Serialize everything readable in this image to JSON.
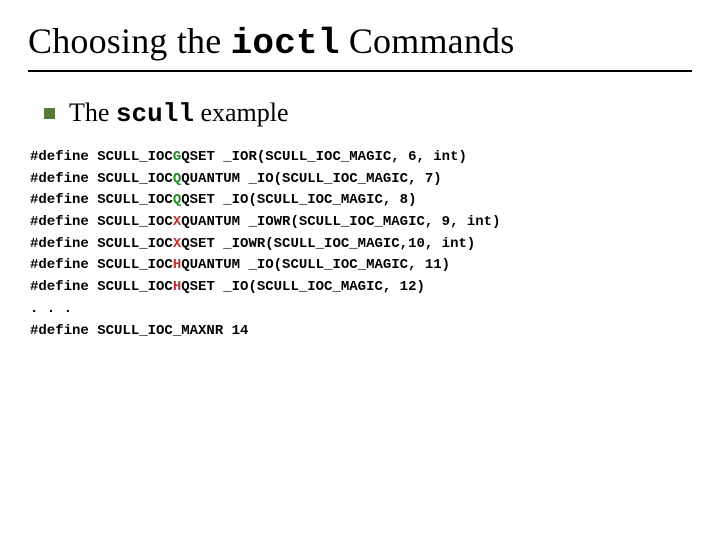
{
  "title": {
    "pre": "Choosing the ",
    "mono": "ioctl",
    "post": " Commands"
  },
  "subtitle": {
    "pre": "The ",
    "mono": "scull",
    "post": " example"
  },
  "colors": {
    "bullet": "#5a7a3a",
    "hl_green": "#1f8a1f",
    "hl_red": "#c03030"
  },
  "code": {
    "lines": [
      {
        "pre": "#define SCULL_IOC",
        "hl": "G",
        "hl_color": "#1f8a1f",
        "post": "QSET _IOR(SCULL_IOC_MAGIC, 6, int)"
      },
      {
        "pre": "#define SCULL_IOC",
        "hl": "Q",
        "hl_color": "#1f8a1f",
        "post": "QUANTUM _IO(SCULL_IOC_MAGIC, 7)"
      },
      {
        "pre": "#define SCULL_IOC",
        "hl": "Q",
        "hl_color": "#1f8a1f",
        "post": "QSET _IO(SCULL_IOC_MAGIC, 8)"
      },
      {
        "pre": "#define SCULL_IOC",
        "hl": "X",
        "hl_color": "#c03030",
        "post": "QUANTUM _IOWR(SCULL_IOC_MAGIC, 9, int)"
      },
      {
        "pre": "#define SCULL_IOC",
        "hl": "X",
        "hl_color": "#c03030",
        "post": "QSET _IOWR(SCULL_IOC_MAGIC,10, int)"
      },
      {
        "pre": "#define SCULL_IOC",
        "hl": "H",
        "hl_color": "#c03030",
        "post": "QUANTUM _IO(SCULL_IOC_MAGIC, 11)"
      },
      {
        "pre": "#define SCULL_IOC",
        "hl": "H",
        "hl_color": "#c03030",
        "post": "QSET _IO(SCULL_IOC_MAGIC, 12)"
      },
      {
        "pre": ". . .",
        "hl": "",
        "hl_color": "",
        "post": ""
      },
      {
        "pre": "#define SCULL_IOC_MAXNR 14",
        "hl": "",
        "hl_color": "",
        "post": ""
      }
    ]
  }
}
